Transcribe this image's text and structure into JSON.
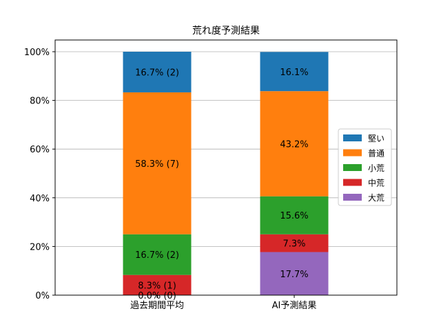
{
  "chart_data": {
    "type": "bar",
    "stacked": true,
    "title": "荒れ度予測結果",
    "xlabel": "",
    "ylabel": "",
    "ylim": [
      0,
      100
    ],
    "y_ticks": [
      "0%",
      "20%",
      "40%",
      "60%",
      "80%",
      "100%"
    ],
    "grid": "horizontal",
    "legend_position": "right",
    "categories": [
      "過去期間平均",
      "AI予測結果"
    ],
    "series": [
      {
        "name": "大荒",
        "color": "#9467bd",
        "values": [
          0.0,
          17.7
        ],
        "labels": [
          "0.0% (0)",
          "17.7%"
        ]
      },
      {
        "name": "中荒",
        "color": "#d62728",
        "values": [
          8.3,
          7.3
        ],
        "labels": [
          "8.3% (1)",
          "7.3%"
        ]
      },
      {
        "name": "小荒",
        "color": "#2ca02c",
        "values": [
          16.7,
          15.6
        ],
        "labels": [
          "16.7% (2)",
          "15.6%"
        ]
      },
      {
        "name": "普通",
        "color": "#ff7f0e",
        "values": [
          58.3,
          43.2
        ],
        "labels": [
          "58.3% (7)",
          "43.2%"
        ]
      },
      {
        "name": "堅い",
        "color": "#1f77b4",
        "values": [
          16.7,
          16.1
        ],
        "labels": [
          "16.7% (2)",
          "16.1%"
        ]
      }
    ],
    "legend_order": [
      "堅い",
      "普通",
      "小荒",
      "中荒",
      "大荒"
    ]
  }
}
